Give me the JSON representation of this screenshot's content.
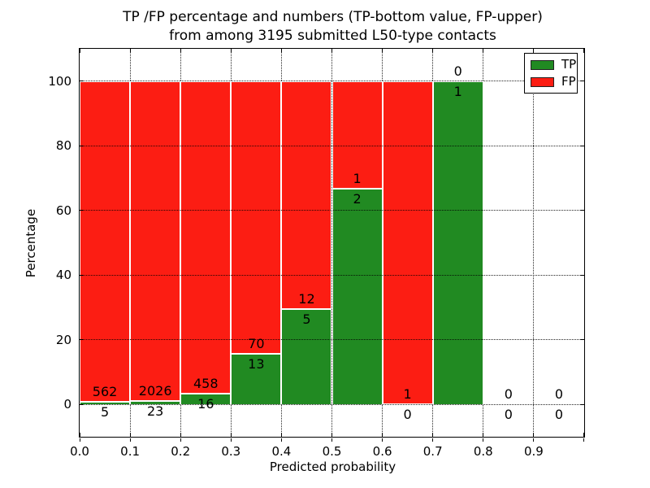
{
  "figure": {
    "title_line1": "TP /FP percentage and numbers (TP-bottom value, FP-upper)",
    "title_line2": "from among 3195 submitted L50-type contacts",
    "xlabel": "Predicted probability",
    "ylabel": "Percentage"
  },
  "legend": {
    "position": "upper right",
    "items": [
      {
        "label": "TP",
        "color": "#218a22"
      },
      {
        "label": "FP",
        "color": "#fc1d13"
      }
    ]
  },
  "chart_data": {
    "type": "bar",
    "stacked": true,
    "normalized_to_percent": true,
    "title": "TP /FP percentage and numbers (TP-bottom value, FP-upper) from among 3195 submitted L50-type contacts",
    "xlabel": "Predicted probability",
    "ylabel": "Percentage",
    "total_contacts": 3195,
    "bin_edges": [
      0.0,
      0.1,
      0.2,
      0.3,
      0.4,
      0.5,
      0.6,
      0.7,
      0.8,
      0.9,
      1.0
    ],
    "categories": [
      "0.0-0.1",
      "0.1-0.2",
      "0.2-0.3",
      "0.3-0.4",
      "0.4-0.5",
      "0.5-0.6",
      "0.6-0.7",
      "0.7-0.8",
      "0.8-0.9",
      "0.9-1.0"
    ],
    "series": [
      {
        "name": "TP",
        "color": "#218a22",
        "counts": [
          5,
          23,
          16,
          13,
          5,
          2,
          0,
          1,
          0,
          0
        ]
      },
      {
        "name": "FP",
        "color": "#fc1d13",
        "counts": [
          562,
          2026,
          458,
          70,
          12,
          1,
          1,
          0,
          0,
          0
        ]
      }
    ],
    "tp_percent": [
      0.88,
      1.12,
      3.38,
      15.66,
      29.41,
      66.67,
      0.0,
      100.0,
      0.0,
      0.0
    ],
    "x_ticks": [
      "0.0",
      "0.1",
      "0.2",
      "0.3",
      "0.4",
      "0.5",
      "0.6",
      "0.7",
      "0.8",
      "0.9"
    ],
    "x_tick_values": [
      0.0,
      0.1,
      0.2,
      0.3,
      0.4,
      0.5,
      0.6,
      0.7,
      0.8,
      0.9
    ],
    "y_ticks": [
      "0",
      "20",
      "40",
      "60",
      "80",
      "100"
    ],
    "y_tick_values": [
      0,
      20,
      40,
      60,
      80,
      100
    ],
    "xlim": [
      0.0,
      1.0
    ],
    "ylim": [
      -10,
      110
    ],
    "grid": true,
    "grid_style": "dotted",
    "legend_position": "upper right"
  }
}
